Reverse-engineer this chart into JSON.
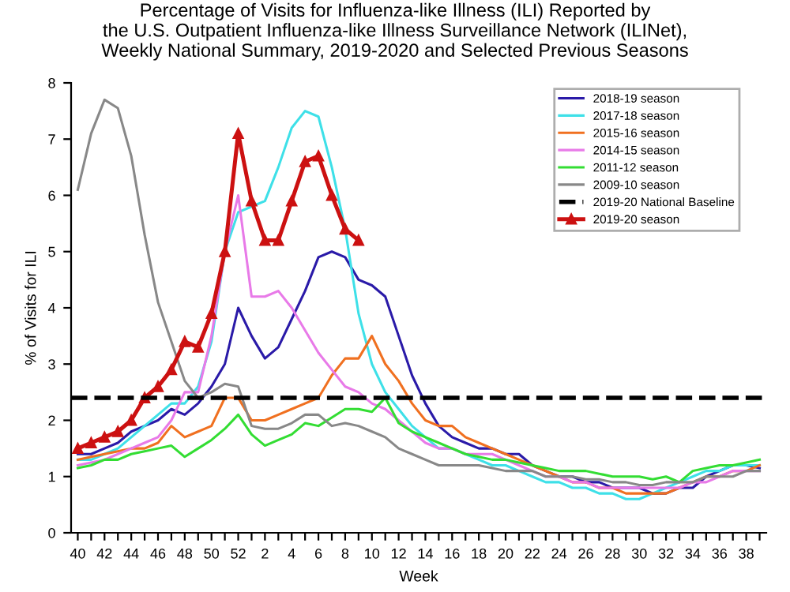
{
  "chart_data": {
    "type": "line",
    "title": "Percentage of Visits for Influenza-like Illness (ILI) Reported by\nthe U.S. Outpatient Influenza-like Illness Surveillance Network (ILINet),\nWeekly National Summary, 2019-2020 and Selected Previous Seasons",
    "xlabel": "Week",
    "ylabel": "% of Visits for ILI",
    "categories": [
      "40",
      null,
      "42",
      null,
      "44",
      null,
      "46",
      null,
      "48",
      null,
      "50",
      null,
      "52",
      null,
      "2",
      null,
      "4",
      null,
      "6",
      null,
      "8",
      null,
      "10",
      null,
      "12",
      null,
      "14",
      null,
      "16",
      null,
      "18",
      null,
      "20",
      null,
      "22",
      null,
      "24",
      null,
      "26",
      null,
      "28",
      null,
      "30",
      null,
      "32",
      null,
      "34",
      null,
      "36",
      null,
      "38",
      null
    ],
    "ylim": [
      0,
      8
    ],
    "yticks": [
      0,
      1,
      2,
      3,
      4,
      5,
      6,
      7,
      8
    ],
    "legend": "top right",
    "grid": false,
    "line_style": "solid",
    "marker": "none",
    "series": [
      {
        "name": "2018-19 season",
        "color": "#2a1aa8",
        "values": [
          1.4,
          1.4,
          1.5,
          1.6,
          1.8,
          1.9,
          2.0,
          2.2,
          2.1,
          2.3,
          2.6,
          3.0,
          4.0,
          3.5,
          3.1,
          3.3,
          3.8,
          4.3,
          4.9,
          5.0,
          4.9,
          4.5,
          4.4,
          4.2,
          3.5,
          2.8,
          2.3,
          1.9,
          1.7,
          1.6,
          1.5,
          1.5,
          1.4,
          1.4,
          1.2,
          1.1,
          1.0,
          1.0,
          0.9,
          0.9,
          0.8,
          0.8,
          0.8,
          0.7,
          0.7,
          0.8,
          0.8,
          1.0,
          1.1,
          1.2,
          1.2,
          1.15
        ]
      },
      {
        "name": "2017-18 season",
        "color": "#3ee0e8",
        "values": [
          1.3,
          1.3,
          1.4,
          1.5,
          1.7,
          1.9,
          2.1,
          2.3,
          2.3,
          2.6,
          3.4,
          5.0,
          5.7,
          5.8,
          5.9,
          6.5,
          7.2,
          7.5,
          7.4,
          6.5,
          5.4,
          3.9,
          3.0,
          2.5,
          2.2,
          1.9,
          1.7,
          1.5,
          1.5,
          1.4,
          1.3,
          1.2,
          1.2,
          1.1,
          1.0,
          0.9,
          0.9,
          0.8,
          0.8,
          0.7,
          0.7,
          0.6,
          0.6,
          0.7,
          0.8,
          0.9,
          1.0,
          1.1,
          1.1,
          1.2,
          1.2,
          1.2
        ]
      },
      {
        "name": "2015-16 season",
        "color": "#f07020",
        "values": [
          1.3,
          1.35,
          1.4,
          1.45,
          1.5,
          1.5,
          1.6,
          1.9,
          1.7,
          1.8,
          1.9,
          2.4,
          2.4,
          2.0,
          2.0,
          2.1,
          2.2,
          2.3,
          2.4,
          2.8,
          3.1,
          3.1,
          3.5,
          3.0,
          2.7,
          2.3,
          2.0,
          1.9,
          1.9,
          1.7,
          1.6,
          1.5,
          1.4,
          1.3,
          1.2,
          1.1,
          1.0,
          0.9,
          0.9,
          0.8,
          0.8,
          0.7,
          0.7,
          0.7,
          0.7,
          0.8,
          0.9,
          1.0,
          1.0,
          1.1,
          1.1,
          1.2
        ]
      },
      {
        "name": "2014-15 season",
        "color": "#e87ae8",
        "values": [
          1.2,
          1.25,
          1.3,
          1.4,
          1.5,
          1.6,
          1.7,
          2.0,
          2.5,
          2.5,
          3.5,
          5.0,
          6.0,
          4.2,
          4.2,
          4.3,
          4.0,
          3.6,
          3.2,
          2.9,
          2.6,
          2.5,
          2.3,
          2.2,
          2.0,
          1.8,
          1.6,
          1.5,
          1.5,
          1.4,
          1.4,
          1.4,
          1.3,
          1.2,
          1.1,
          1.0,
          1.0,
          0.9,
          0.9,
          0.8,
          0.8,
          0.8,
          0.8,
          0.8,
          0.8,
          0.8,
          0.9,
          0.9,
          1.0,
          1.1,
          1.1,
          1.1
        ]
      },
      {
        "name": "2011-12 season",
        "color": "#33dd33",
        "values": [
          1.15,
          1.2,
          1.3,
          1.3,
          1.4,
          1.45,
          1.5,
          1.55,
          1.35,
          1.5,
          1.65,
          1.85,
          2.1,
          1.75,
          1.55,
          1.65,
          1.75,
          1.95,
          1.9,
          2.05,
          2.2,
          2.2,
          2.15,
          2.4,
          1.95,
          1.8,
          1.7,
          1.6,
          1.5,
          1.4,
          1.35,
          1.3,
          1.3,
          1.25,
          1.2,
          1.15,
          1.1,
          1.1,
          1.1,
          1.05,
          1.0,
          1.0,
          1.0,
          0.95,
          1.0,
          0.9,
          1.1,
          1.15,
          1.2,
          1.2,
          1.25,
          1.3
        ]
      },
      {
        "name": "2009-10 season",
        "color": "#888888",
        "values": [
          6.1,
          7.1,
          7.7,
          7.55,
          6.7,
          5.3,
          4.1,
          3.4,
          2.7,
          2.4,
          2.5,
          2.65,
          2.6,
          1.9,
          1.85,
          1.85,
          1.95,
          2.1,
          2.1,
          1.9,
          1.95,
          1.9,
          1.8,
          1.7,
          1.5,
          1.4,
          1.3,
          1.2,
          1.2,
          1.2,
          1.2,
          1.15,
          1.1,
          1.1,
          1.1,
          1.0,
          1.0,
          1.0,
          0.95,
          0.95,
          0.9,
          0.9,
          0.85,
          0.85,
          0.9,
          0.9,
          0.9,
          1.0,
          1.0,
          1.0,
          1.1,
          1.1
        ]
      },
      {
        "name": "2019-20 season",
        "color": "#cc1111",
        "marker": "triangle",
        "values": [
          1.5,
          1.6,
          1.7,
          1.8,
          2.0,
          2.4,
          2.6,
          2.9,
          3.4,
          3.3,
          3.9,
          5.0,
          7.1,
          5.9,
          5.2,
          5.2,
          5.9,
          6.6,
          6.7,
          6.0,
          5.4,
          5.2,
          null,
          null,
          null,
          null,
          null,
          null,
          null,
          null,
          null,
          null,
          null,
          null,
          null,
          null,
          null,
          null,
          null,
          null,
          null,
          null,
          null,
          null,
          null,
          null,
          null,
          null,
          null,
          null,
          null,
          null
        ]
      }
    ],
    "ref_lines": [
      {
        "axis": "y",
        "value": 2.4,
        "label": "2019-20 National Baseline",
        "color": "#000000",
        "line_style": "dashed"
      }
    ]
  }
}
